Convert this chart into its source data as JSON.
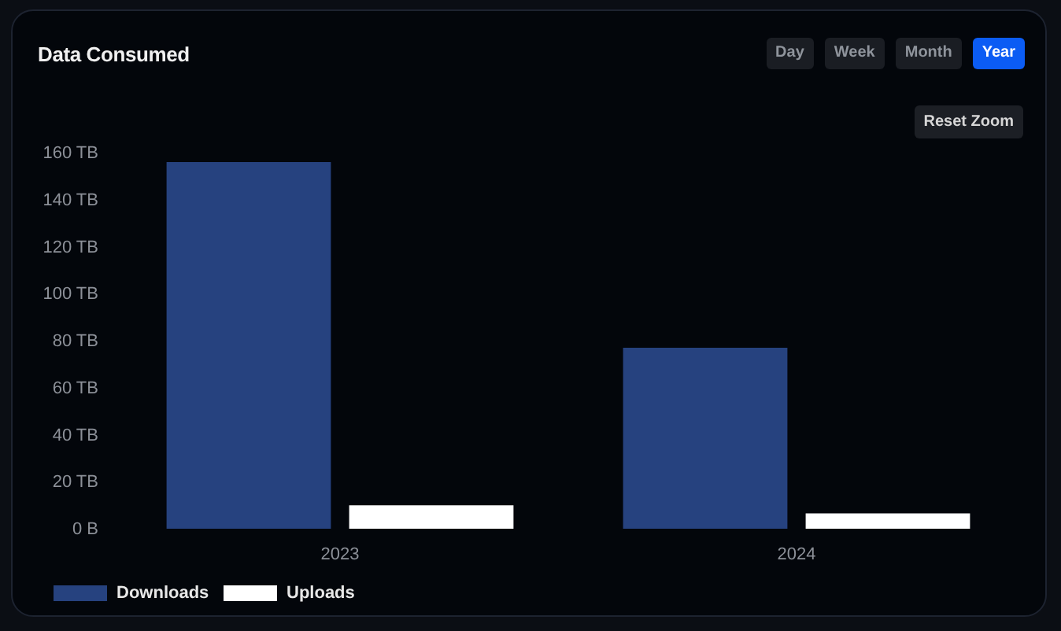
{
  "chart_data": {
    "type": "bar",
    "title": "Data Consumed",
    "categories": [
      "2023",
      "2024"
    ],
    "series": [
      {
        "name": "Downloads",
        "color": "#26427f",
        "values": [
          156,
          77
        ]
      },
      {
        "name": "Uploads",
        "color": "#ffffff",
        "values": [
          10,
          6.5
        ]
      }
    ],
    "ylim": [
      0,
      160
    ],
    "yticks": [
      {
        "value": 0,
        "label": "0 B"
      },
      {
        "value": 20,
        "label": "20 TB"
      },
      {
        "value": 40,
        "label": "40 TB"
      },
      {
        "value": 60,
        "label": "60 TB"
      },
      {
        "value": 80,
        "label": "80 TB"
      },
      {
        "value": 100,
        "label": "100 TB"
      },
      {
        "value": 120,
        "label": "120 TB"
      },
      {
        "value": 140,
        "label": "140 TB"
      },
      {
        "value": 160,
        "label": "160 TB"
      }
    ],
    "legend": "bottom",
    "annotations": [
      "Day",
      "Week",
      "Month",
      "Year",
      "Reset Zoom"
    ]
  }
}
